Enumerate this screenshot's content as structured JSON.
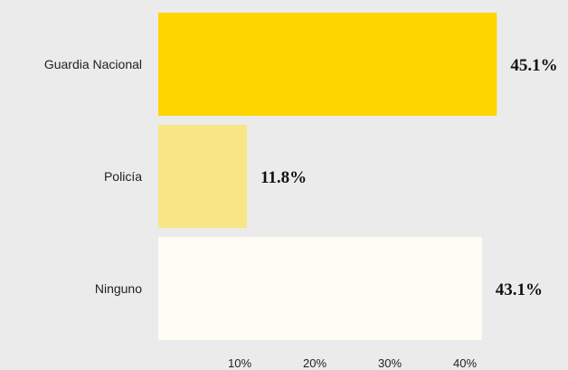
{
  "chart_data": {
    "type": "bar",
    "orientation": "horizontal",
    "categories": [
      "Guardia Nacional",
      "Policía",
      "Ninguno"
    ],
    "values": [
      45.1,
      11.8,
      43.1
    ],
    "data_labels": [
      "45.1%",
      "11.8%",
      "43.1%"
    ],
    "bar_colors": [
      "#ffd500",
      "#fae586",
      "#fffcf4"
    ],
    "xlim": [
      0,
      47
    ],
    "x_ticks": [
      10,
      20,
      30,
      40
    ],
    "x_tick_labels": [
      "10%",
      "20%",
      "30%",
      "40%"
    ],
    "grid": false,
    "legend": "none",
    "title": "",
    "xlabel": "",
    "ylabel": ""
  }
}
